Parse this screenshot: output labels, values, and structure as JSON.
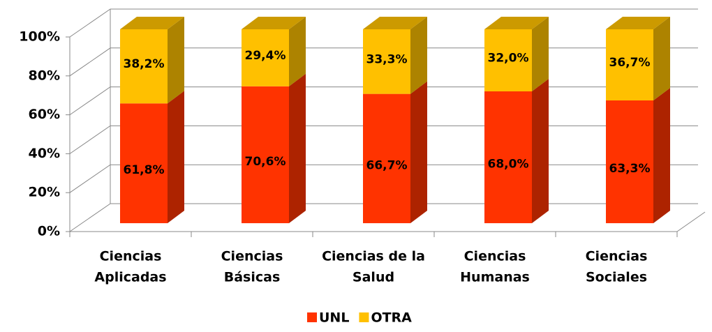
{
  "chart_data": {
    "type": "bar",
    "stacked": true,
    "categories": [
      [
        "Ciencias",
        "Aplicadas"
      ],
      [
        "Ciencias",
        "Básicas"
      ],
      [
        "Ciencias de la",
        "Salud"
      ],
      [
        "Ciencias",
        "Humanas"
      ],
      [
        "Ciencias",
        "Sociales"
      ]
    ],
    "series": [
      {
        "name": "UNL",
        "color": "#ff3300",
        "values": [
          61.8,
          70.6,
          66.7,
          68.0,
          63.3
        ],
        "value_labels": [
          "61,8%",
          "70,6%",
          "66,7%",
          "68,0%",
          "63,3%"
        ]
      },
      {
        "name": "OTRA",
        "color": "#ffc000",
        "values": [
          38.2,
          29.4,
          33.3,
          32.0,
          36.7
        ],
        "value_labels": [
          "38,2%",
          "29,4%",
          "33,3%",
          "32,0%",
          "36,7%"
        ]
      }
    ],
    "ylim": [
      0,
      100
    ],
    "yticks": [
      {
        "value": 0,
        "label": "0%"
      },
      {
        "value": 20,
        "label": "20%"
      },
      {
        "value": 40,
        "label": "40%"
      },
      {
        "value": 60,
        "label": "60%"
      },
      {
        "value": 80,
        "label": "80%"
      },
      {
        "value": 100,
        "label": "100%"
      }
    ],
    "grid": true,
    "legend": "bottom"
  }
}
